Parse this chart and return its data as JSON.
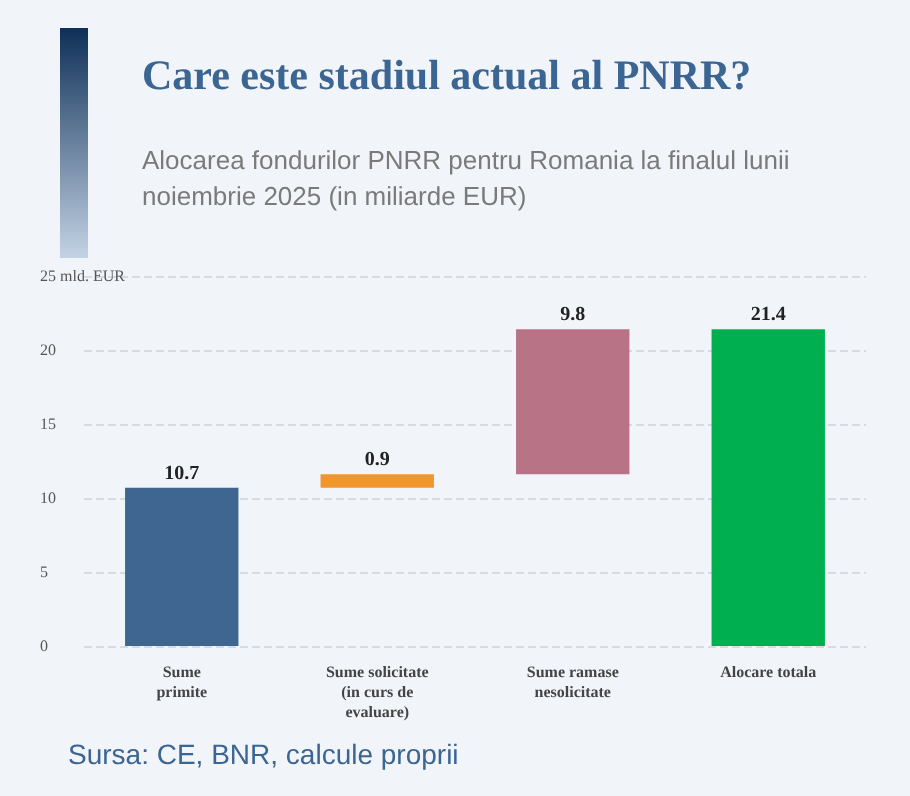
{
  "chart_data": {
    "type": "bar",
    "title": "Care este stadiul actual al PNRR?",
    "subtitle": "Alocarea fondurilor PNRR pentru Romania la finalul lunii noiembrie 2025 (in miliarde EUR)",
    "categories": [
      "Sume\nprimite",
      "Sume solicitate\n(in curs de\nevaluare)",
      "Sume ramase\nnesolicitate",
      "Alocare totala"
    ],
    "values": [
      10.7,
      0.9,
      9.8,
      21.4
    ],
    "base": [
      0,
      10.7,
      11.6,
      0
    ],
    "colors": [
      "#3e6690",
      "#f0962a",
      "#b87386",
      "#00b050"
    ],
    "ylim": [
      0,
      25
    ],
    "yticks": [
      0,
      5,
      10,
      15,
      20,
      {
        "value": 25,
        "label": "25 mld. EUR"
      }
    ],
    "grid": "y",
    "data_labels": true,
    "annotations": [
      "Sursa: CE, BNR, calcule proprii"
    ]
  }
}
